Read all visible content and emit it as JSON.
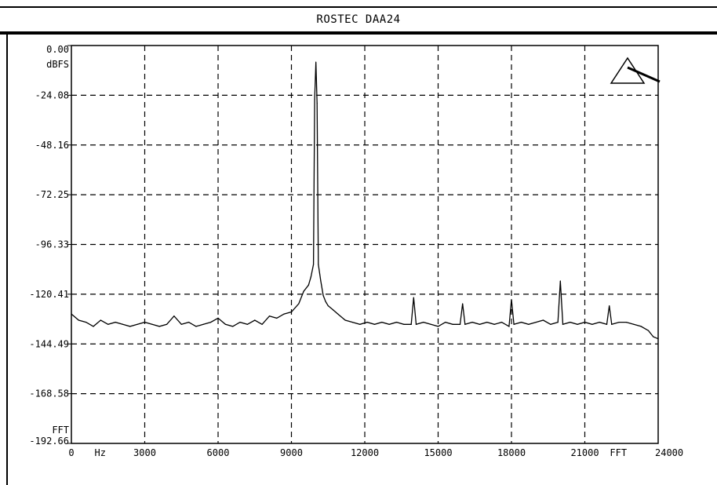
{
  "window": {
    "title": "ROSTEC  DAA24"
  },
  "chart_data": {
    "type": "line",
    "title": "ROSTEC  DAA24",
    "ylabel": "dBFS",
    "ylabel_bottom": "FFT",
    "xunit_label": "Hz",
    "xmode_label": "FFT",
    "xlim": [
      0,
      24000
    ],
    "ylim": [
      -192.66,
      0
    ],
    "y_ticks": [
      "0.00",
      "-24.08",
      "-48.16",
      "-72.25",
      "-96.33",
      "-120.41",
      "-144.49",
      "-168.58",
      "-192.66"
    ],
    "x_ticks": [
      "0",
      "3000",
      "6000",
      "9000",
      "12000",
      "15000",
      "18000",
      "21000",
      "24000"
    ],
    "grid": true,
    "grid_style": "dashed",
    "noise_floor_db": -135,
    "series": [
      {
        "values_note": "spectrum",
        "x": [
          0,
          300,
          600,
          900,
          1200,
          1500,
          1800,
          2100,
          2400,
          2700,
          3000,
          3300,
          3600,
          3900,
          4200,
          4500,
          4800,
          5100,
          5400,
          5700,
          6000,
          6300,
          6600,
          6900,
          7200,
          7500,
          7800,
          8100,
          8400,
          8700,
          9000,
          9300,
          9500,
          9700,
          9800,
          9900,
          9950,
          10000,
          10050,
          10100,
          10200,
          10300,
          10400,
          10500,
          10700,
          10900,
          11200,
          11500,
          11800,
          12100,
          12400,
          12700,
          13000,
          13300,
          13600,
          13900,
          14000,
          14100,
          14400,
          14700,
          15000,
          15300,
          15600,
          15900,
          16000,
          16100,
          16400,
          16700,
          17000,
          17300,
          17600,
          17900,
          18000,
          18100,
          18400,
          18700,
          19000,
          19300,
          19600,
          19900,
          20000,
          20100,
          20400,
          20700,
          21000,
          21300,
          21600,
          21900,
          22000,
          22100,
          22400,
          22700,
          23000,
          23300,
          23600,
          23800,
          24000
        ],
        "y": [
          -130,
          -133,
          -134,
          -136,
          -133,
          -135,
          -134,
          -135,
          -136,
          -135,
          -134,
          -135,
          -136,
          -135,
          -131,
          -135,
          -134,
          -136,
          -135,
          -134,
          -132,
          -135,
          -136,
          -134,
          -135,
          -133,
          -135,
          -131,
          -132,
          -130,
          -129,
          -125,
          -119,
          -116,
          -112,
          -106,
          -26,
          -8,
          -28,
          -106,
          -114,
          -121,
          -124,
          -126,
          -128,
          -130,
          -133,
          -134,
          -135,
          -134,
          -135,
          -134,
          -135,
          -134,
          -135,
          -135,
          -122,
          -135,
          -134,
          -135,
          -136,
          -134,
          -135,
          -135,
          -125,
          -135,
          -134,
          -135,
          -134,
          -135,
          -134,
          -136,
          -123,
          -135,
          -134,
          -135,
          -134,
          -133,
          -135,
          -134,
          -114,
          -135,
          -134,
          -135,
          -134,
          -135,
          -134,
          -135,
          -126,
          -135,
          -134,
          -134,
          -135,
          -136,
          -138,
          -141,
          -142
        ]
      }
    ],
    "annotation": "triangle-cursor-marker"
  }
}
